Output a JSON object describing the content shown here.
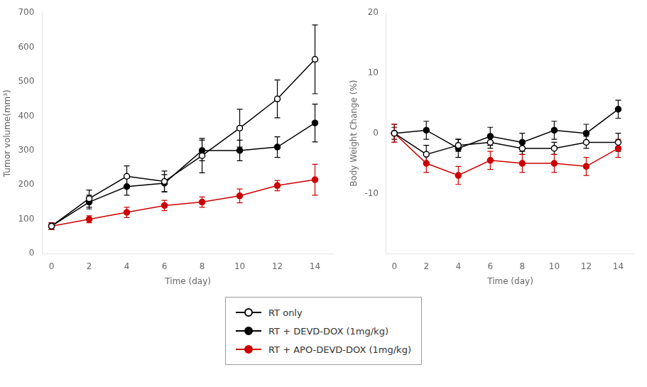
{
  "chart_data": [
    {
      "type": "line",
      "x": [
        0,
        2,
        4,
        6,
        8,
        10,
        12,
        14
      ],
      "series": [
        {
          "name": "RT only",
          "color": "#000000",
          "marker": "open_circle",
          "values": [
            80,
            160,
            225,
            210,
            285,
            365,
            450,
            565
          ],
          "errors": [
            10,
            25,
            30,
            30,
            50,
            55,
            55,
            100
          ]
        },
        {
          "name": "RT + DEVD-DOX (1mg/kg)",
          "color": "#000000",
          "marker": "circle",
          "values": [
            80,
            150,
            195,
            205,
            300,
            300,
            310,
            380
          ],
          "errors": [
            10,
            20,
            25,
            25,
            30,
            30,
            30,
            55
          ]
        },
        {
          "name": "RT + APO-DEVD-DOX (1mg/kg)",
          "color": "#cc0000",
          "marker": "circle",
          "values": [
            80,
            100,
            120,
            140,
            150,
            168,
            198,
            215
          ],
          "errors": [
            10,
            10,
            15,
            15,
            15,
            20,
            15,
            45
          ]
        }
      ],
      "xlabel": "Time (day)",
      "ylabel": "Tumor volume(mm³)",
      "xlim": [
        -0.5,
        15.0
      ],
      "xticks": [
        0,
        2,
        4,
        6,
        8,
        10,
        12,
        14
      ],
      "ylim": [
        0,
        700
      ],
      "yticks": [
        0,
        100,
        200,
        300,
        400,
        500,
        600,
        700
      ],
      "grid": false,
      "legend": "bottom"
    },
    {
      "type": "line",
      "x": [
        0,
        2,
        4,
        6,
        8,
        10,
        12,
        14
      ],
      "series": [
        {
          "name": "RT only",
          "color": "#000000",
          "marker": "open_circle",
          "values": [
            0.0,
            -3.5,
            -2.0,
            -1.5,
            -2.5,
            -2.5,
            -1.5,
            -1.5
          ],
          "errors": [
            1.5,
            1.5,
            1.0,
            1.0,
            1.0,
            1.0,
            1.0,
            1.5
          ]
        },
        {
          "name": "RT + DEVD-DOX (1mg/kg)",
          "color": "#000000",
          "marker": "circle",
          "values": [
            0.0,
            0.5,
            -2.5,
            -0.5,
            -1.5,
            0.5,
            0.0,
            4.0
          ],
          "errors": [
            1.0,
            1.5,
            1.5,
            1.5,
            1.5,
            1.5,
            1.5,
            1.5
          ]
        },
        {
          "name": "RT + APO-DEVD-DOX (1mg/kg)",
          "color": "#cc0000",
          "marker": "circle",
          "values": [
            0.0,
            -5.0,
            -7.0,
            -4.5,
            -5.0,
            -5.0,
            -5.5,
            -2.5
          ],
          "errors": [
            1.5,
            1.5,
            1.5,
            1.5,
            1.5,
            1.5,
            1.5,
            1.5
          ]
        }
      ],
      "xlabel": "Time (day)",
      "ylabel": "Body Weight Change (%)",
      "xlim": [
        -0.5,
        15.0
      ],
      "xticks": [
        0,
        2,
        4,
        6,
        8,
        10,
        12,
        14
      ],
      "ylim": [
        -20,
        20
      ],
      "yticks": [
        -10,
        0,
        10,
        20
      ],
      "grid": false
    }
  ]
}
